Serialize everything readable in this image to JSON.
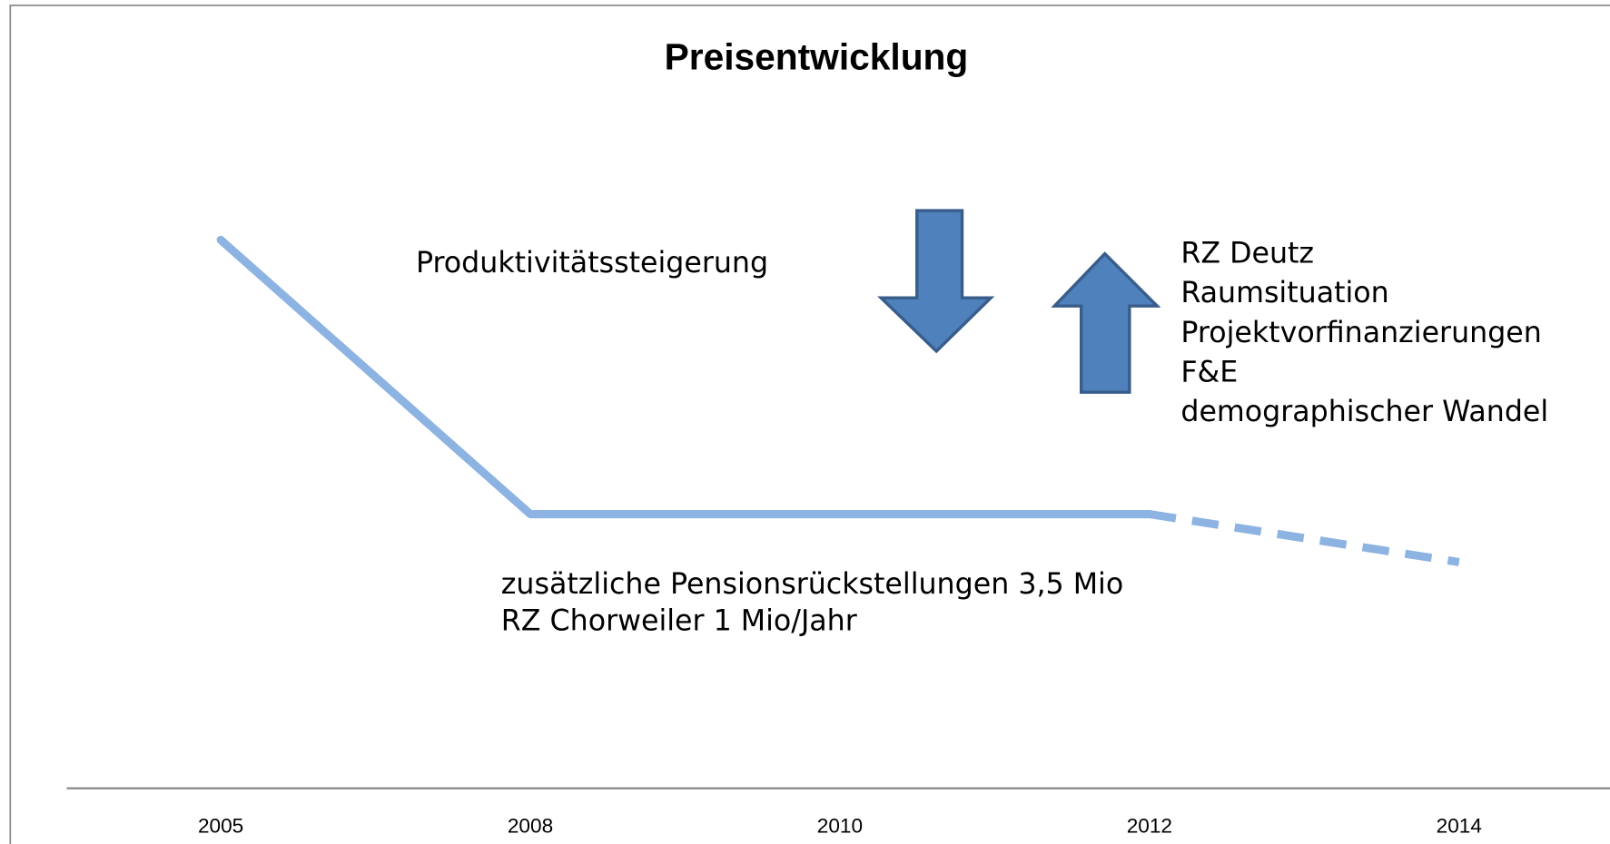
{
  "chart_data": {
    "type": "line",
    "title": "Preisentwicklung",
    "categories": [
      "2005",
      "2008",
      "2010",
      "2012",
      "2014"
    ],
    "series": [
      {
        "color": "#8db3e2",
        "style": "solid",
        "values": [
          80,
          40,
          40,
          40,
          null
        ]
      },
      {
        "color": "#8db3e2",
        "style": "dashed",
        "values": [
          null,
          null,
          null,
          40,
          33
        ]
      }
    ],
    "ylim": [
      0,
      100
    ],
    "annotations": {
      "decrease": [
        "Produktivitätssteigerung"
      ],
      "increase": [
        "RZ Deutz",
        "Raumsituation",
        "Projektvorfinanzierungen",
        "F&E",
        "demographischer Wandel"
      ],
      "bottom": [
        "zusätzliche Pensionsrückstellungen 3,5 Mio",
        "RZ Chorweiler 1 Mio/Jahr"
      ]
    }
  }
}
